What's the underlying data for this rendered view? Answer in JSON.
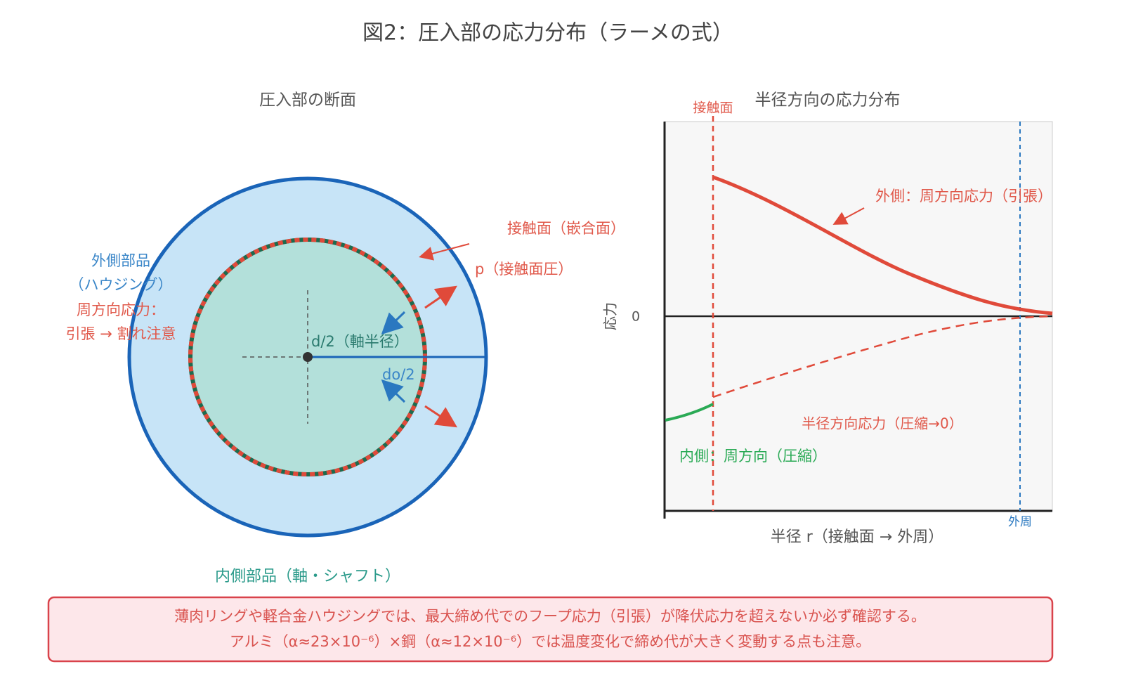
{
  "title": "図2：圧入部の応力分布（ラーメの式）",
  "cross_section": {
    "title": "圧入部の断面",
    "outer_part": [
      "外側部品",
      "（ハウジング）",
      "周方向応力：",
      "引張 → 割れ注意"
    ],
    "contact_surface": "接触面（嵌合面）",
    "pressure": "p（接触面圧）",
    "shaft_radius": "d/2（軸半径）",
    "outer_radius": "do/2",
    "inner_part": "内側部品（軸・シャフト）"
  },
  "stress_plot": {
    "title": "半径方向の応力分布",
    "contact_label": "接触面",
    "y_axis_label": "応力",
    "zero_label": "0",
    "outer_hoop": "外側：周方向応力（引張）",
    "radial": "半径方向応力（圧縮→0）",
    "inner_hoop": "内側：周方向（圧縮）",
    "outer_edge_label": "外周",
    "x_axis_label": "半径 r（接触面 → 外周）"
  },
  "note": [
    "薄肉リングや軽合金ハウジングでは、最大締め代でのフープ応力（引張）が降伏応力を超えないか必ず確認する。",
    "アルミ（α≈23×10⁻⁶）×鋼（α≈12×10⁻⁶）では温度変化で締め代が大きく変動する点も注意。"
  ]
}
